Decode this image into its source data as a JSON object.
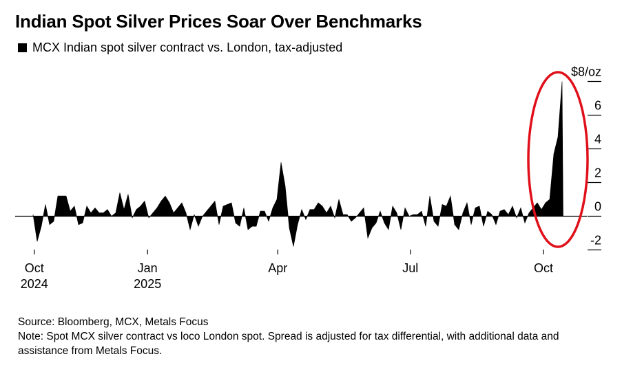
{
  "title": "Indian Spot Silver Prices Soar Over Benchmarks",
  "legend": {
    "label": "MCX Indian spot silver contract vs. London, tax-adjusted",
    "color": "#000000"
  },
  "source": "Source: Bloomberg, MCX, Metals Focus",
  "note": "Note: Spot MCX silver contract vs loco London spot. Spread is adjusted for tax differential, with additional data and assistance from Metals Focus.",
  "annotation": {
    "type": "ellipse",
    "color": "#e0101a",
    "highlights": "October 2025 spike"
  },
  "chart_data": {
    "type": "area",
    "title": "Indian Spot Silver Prices Soar Over Benchmarks",
    "ylabel": "$/oz",
    "ylim": [
      -2,
      8
    ],
    "yticks": [
      {
        "value": 8,
        "label": "$8/oz"
      },
      {
        "value": 6,
        "label": "6"
      },
      {
        "value": 4,
        "label": "4"
      },
      {
        "value": 2,
        "label": "2"
      },
      {
        "value": 0,
        "label": "0"
      },
      {
        "value": -2,
        "label": "-2"
      }
    ],
    "x_unit": "trading-period index (approx. every 2-3 trading days, Oct 2024 - mid Oct 2025)",
    "xlim": [
      0,
      128
    ],
    "xticks": [
      {
        "pos": 0.3,
        "label": "Oct",
        "sublabel": "2024"
      },
      {
        "pos": 27.7,
        "label": "Jan",
        "sublabel": "2025"
      },
      {
        "pos": 59.2,
        "label": "Apr",
        "sublabel": ""
      },
      {
        "pos": 91.3,
        "label": "Jul",
        "sublabel": ""
      },
      {
        "pos": 123.5,
        "label": "Oct",
        "sublabel": ""
      }
    ],
    "grid": false,
    "values": [
      0.1,
      -1.5,
      -0.6,
      0.7,
      -0.5,
      -0.3,
      1.2,
      1.2,
      1.2,
      0.3,
      0.6,
      -0.5,
      -0.4,
      0.6,
      0.2,
      0.5,
      0.2,
      0.2,
      0.4,
      0,
      0.2,
      1.4,
      0.4,
      1.3,
      -0.1,
      0.4,
      0.6,
      0.9,
      -0.1,
      0.2,
      0.5,
      0.9,
      1.2,
      0.8,
      0.2,
      0.5,
      0.8,
      0.2,
      -0.8,
      0.1,
      -0.6,
      0,
      0.3,
      0.6,
      0.9,
      -0.5,
      0.6,
      0.7,
      0.8,
      -0.4,
      -0.6,
      0.5,
      -0.8,
      -0.6,
      -0.6,
      0.3,
      0.3,
      -0.3,
      0.5,
      1.0,
      3.2,
      1.8,
      -0.7,
      -1.8,
      -0.5,
      0.4,
      -0.2,
      0.4,
      0.4,
      0.8,
      0.6,
      0.2,
      0.6,
      -0.1,
      1.0,
      0.1,
      0.1,
      -0.3,
      -0.1,
      0.2,
      0.5,
      -1.3,
      -0.7,
      -0.4,
      0.3,
      -0.4,
      -0.8,
      0.6,
      0.2,
      -0.8,
      0.5,
      0,
      0.1,
      0.1,
      0.3,
      -0.6,
      1.2,
      -0.3,
      -0.6,
      0.7,
      0.6,
      1.2,
      -0.5,
      -0.8,
      0.2,
      0.8,
      -0.5,
      0.5,
      0.6,
      -0.6,
      0.3,
      0.1,
      -0.5,
      0.3,
      0.4,
      0.1,
      0.6,
      -0.1,
      0.5,
      -0.4,
      0.2,
      0.5,
      0.8,
      0.4,
      0.8,
      1.0,
      3.7,
      4.7,
      8.0
    ]
  }
}
